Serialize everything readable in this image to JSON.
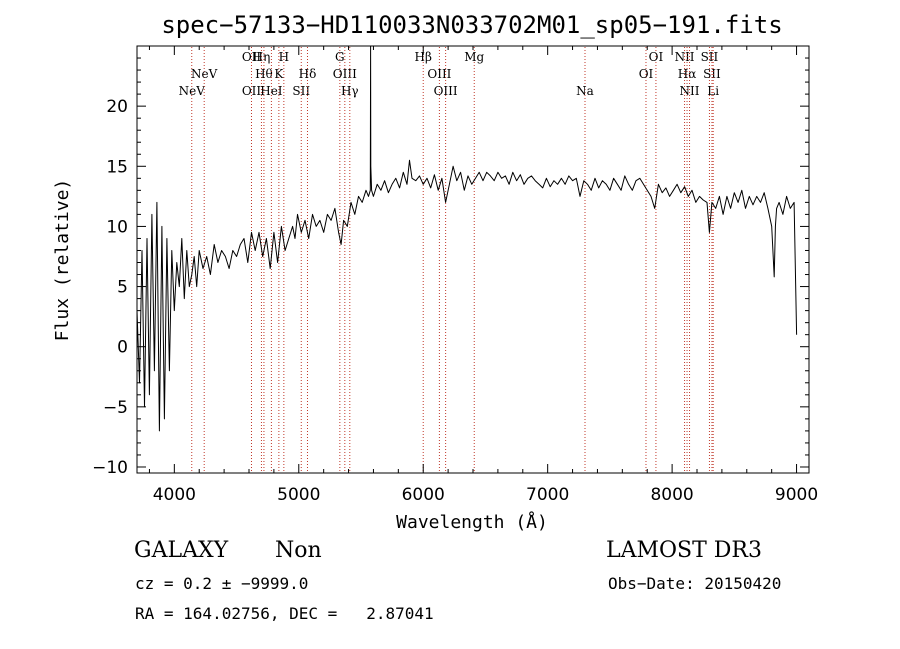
{
  "chart_data": {
    "type": "line",
    "title": "spec−57133−HD110033N033702M01_sp05−191.fits",
    "xlabel": "Wavelength (Å)",
    "ylabel": "Flux (relative)",
    "xlim": [
      3700,
      9100
    ],
    "ylim": [
      -10.5,
      25
    ],
    "xticks": [
      4000,
      5000,
      6000,
      7000,
      8000,
      9000
    ],
    "yticks": [
      -10,
      -5,
      0,
      5,
      10,
      15,
      20
    ],
    "series": [
      {
        "name": "spectrum",
        "x": [
          3700,
          3720,
          3740,
          3760,
          3780,
          3800,
          3820,
          3840,
          3860,
          3880,
          3900,
          3920,
          3940,
          3960,
          3980,
          4000,
          4020,
          4040,
          4060,
          4080,
          4100,
          4120,
          4140,
          4160,
          4180,
          4200,
          4230,
          4260,
          4290,
          4320,
          4350,
          4380,
          4410,
          4440,
          4470,
          4500,
          4530,
          4560,
          4590,
          4620,
          4650,
          4680,
          4710,
          4740,
          4770,
          4800,
          4830,
          4860,
          4890,
          4920,
          4950,
          4970,
          4990,
          5020,
          5050,
          5080,
          5110,
          5140,
          5170,
          5200,
          5230,
          5260,
          5290,
          5320,
          5340,
          5360,
          5390,
          5420,
          5450,
          5480,
          5510,
          5540,
          5560,
          5575,
          5577,
          5579,
          5585,
          5600,
          5630,
          5660,
          5690,
          5720,
          5750,
          5780,
          5810,
          5840,
          5870,
          5890,
          5910,
          5940,
          5970,
          6000,
          6030,
          6060,
          6090,
          6120,
          6150,
          6180,
          6210,
          6240,
          6270,
          6300,
          6330,
          6360,
          6390,
          6420,
          6450,
          6480,
          6510,
          6540,
          6570,
          6600,
          6630,
          6660,
          6690,
          6720,
          6750,
          6780,
          6810,
          6840,
          6870,
          6900,
          6930,
          6960,
          6990,
          7020,
          7050,
          7080,
          7110,
          7140,
          7170,
          7200,
          7230,
          7260,
          7290,
          7320,
          7350,
          7380,
          7410,
          7440,
          7470,
          7500,
          7530,
          7560,
          7590,
          7620,
          7650,
          7680,
          7710,
          7740,
          7770,
          7800,
          7830,
          7860,
          7890,
          7920,
          7950,
          7980,
          8010,
          8040,
          8070,
          8100,
          8130,
          8160,
          8190,
          8220,
          8250,
          8280,
          8300,
          8320,
          8350,
          8380,
          8410,
          8440,
          8470,
          8500,
          8530,
          8560,
          8590,
          8620,
          8650,
          8680,
          8710,
          8740,
          8770,
          8800,
          8810,
          8820,
          8830,
          8840,
          8860,
          8890,
          8920,
          8950,
          8980,
          9000
        ],
        "y": [
          3.0,
          -3.0,
          8.0,
          -5.0,
          9.0,
          -4.0,
          11.0,
          -2.0,
          12.0,
          -7.0,
          10.0,
          -6.0,
          9.0,
          -2.0,
          8.0,
          3.0,
          7.0,
          5.0,
          9.0,
          4.0,
          8.0,
          5.0,
          6.0,
          7.5,
          5.0,
          8.0,
          6.5,
          7.5,
          6.0,
          8.5,
          7.0,
          8.0,
          7.5,
          6.5,
          8.0,
          7.5,
          8.5,
          9.0,
          7.0,
          9.5,
          8.0,
          9.5,
          7.5,
          9.0,
          6.5,
          9.5,
          7.0,
          10.0,
          8.0,
          9.0,
          10.0,
          9.0,
          11.0,
          9.5,
          10.5,
          9.0,
          11.0,
          10.0,
          10.5,
          9.5,
          11.0,
          10.5,
          11.5,
          9.5,
          8.5,
          10.5,
          10.0,
          12.0,
          11.0,
          12.5,
          12.0,
          13.0,
          12.5,
          13.0,
          25.0,
          15.0,
          13.0,
          12.5,
          13.5,
          13.0,
          13.8,
          12.8,
          13.5,
          14.0,
          13.2,
          14.5,
          13.5,
          15.5,
          14.0,
          13.8,
          14.2,
          13.5,
          14.0,
          13.2,
          14.3,
          13.0,
          14.0,
          12.0,
          13.5,
          15.0,
          13.8,
          14.5,
          13.0,
          14.2,
          13.5,
          14.0,
          14.5,
          13.8,
          14.5,
          14.2,
          13.8,
          14.5,
          14.0,
          14.2,
          13.5,
          14.5,
          13.8,
          14.3,
          13.5,
          14.0,
          14.2,
          13.8,
          13.5,
          13.2,
          14.0,
          13.3,
          13.8,
          13.5,
          14.0,
          13.5,
          14.2,
          13.8,
          14.0,
          12.5,
          13.8,
          13.5,
          13.0,
          14.0,
          13.2,
          13.8,
          13.5,
          13.0,
          14.0,
          13.5,
          13.0,
          14.2,
          13.5,
          13.0,
          13.8,
          14.0,
          13.5,
          13.0,
          12.5,
          11.5,
          13.5,
          12.8,
          13.2,
          12.5,
          13.0,
          13.5,
          12.8,
          13.3,
          12.5,
          13.0,
          12.0,
          12.5,
          12.2,
          12.0,
          9.5,
          12.0,
          11.5,
          12.5,
          11.0,
          12.5,
          11.5,
          12.8,
          12.0,
          13.0,
          11.5,
          12.5,
          11.8,
          12.5,
          12.0,
          12.8,
          11.5,
          10.0,
          8.0,
          5.8,
          10.0,
          11.5,
          12.0,
          11.0,
          12.5,
          11.5,
          12.0,
          1.0
        ]
      }
    ],
    "line_markers": [
      {
        "label": "NeV",
        "x": 4140,
        "row": 3
      },
      {
        "label": "NeV",
        "x": 4240,
        "row": 2
      },
      {
        "label": "OII",
        "x": 4620,
        "row": 1
      },
      {
        "label": "OII",
        "x": 4620,
        "row": 3
      },
      {
        "label": "Hη",
        "x": 4700,
        "row": 1
      },
      {
        "label": "Hθ",
        "x": 4720,
        "row": 2
      },
      {
        "label": "HeI",
        "x": 4780,
        "row": 3
      },
      {
        "label": "K",
        "x": 4840,
        "row": 2
      },
      {
        "label": "H",
        "x": 4880,
        "row": 1
      },
      {
        "label": "SII",
        "x": 5020,
        "row": 3
      },
      {
        "label": "Hδ",
        "x": 5070,
        "row": 2
      },
      {
        "label": "G",
        "x": 5330,
        "row": 1
      },
      {
        "label": "OIII",
        "x": 5370,
        "row": 2
      },
      {
        "label": "Hγ",
        "x": 5410,
        "row": 3
      },
      {
        "label": "Hβ",
        "x": 6000,
        "row": 1
      },
      {
        "label": "OIII",
        "x": 6130,
        "row": 2
      },
      {
        "label": "OIII",
        "x": 6180,
        "row": 3
      },
      {
        "label": "Mg",
        "x": 6410,
        "row": 1
      },
      {
        "label": "Na",
        "x": 7300,
        "row": 3
      },
      {
        "label": "OI",
        "x": 7790,
        "row": 2
      },
      {
        "label": "OI",
        "x": 7870,
        "row": 1
      },
      {
        "label": "NII",
        "x": 8100,
        "row": 1
      },
      {
        "label": "Hα",
        "x": 8120,
        "row": 2
      },
      {
        "label": "NII",
        "x": 8140,
        "row": 3
      },
      {
        "label": "SII",
        "x": 8300,
        "row": 1
      },
      {
        "label": "SII",
        "x": 8320,
        "row": 2
      },
      {
        "label": "Li",
        "x": 8330,
        "row": 3
      }
    ]
  },
  "info": {
    "class": "GALAXY",
    "subclass": "Non",
    "survey": "LAMOST DR3",
    "cz": "cz = 0.2 ± −9999.0",
    "obsdate": "Obs−Date: 20150420",
    "radec": "RA = 164.02756, DEC =   2.87041"
  }
}
